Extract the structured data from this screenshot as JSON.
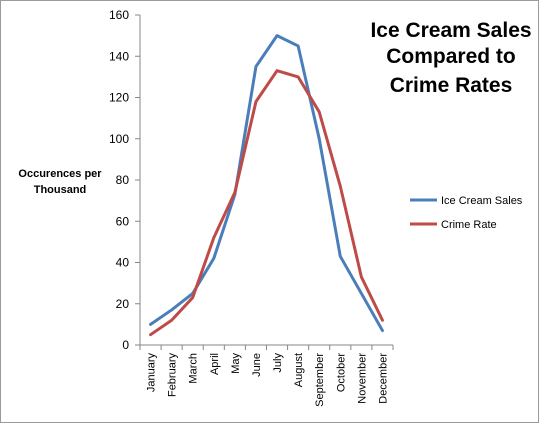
{
  "chart_data": {
    "type": "line",
    "title_lines": [
      "Ice Cream Sales",
      "Compared to",
      "Crime Rates"
    ],
    "ylabel_lines": [
      "Occurences per",
      "Thousand"
    ],
    "xlabel": "",
    "categories": [
      "January",
      "February",
      "March",
      "April",
      "May",
      "June",
      "July",
      "August",
      "September",
      "October",
      "November",
      "December"
    ],
    "ylim": [
      0,
      160
    ],
    "yticks": [
      0,
      20,
      40,
      60,
      80,
      100,
      120,
      140,
      160
    ],
    "grid": false,
    "legend_position": "right",
    "series": [
      {
        "name": "Ice Cream Sales",
        "color": "#4a7ebb",
        "values": [
          10,
          17,
          25,
          42,
          73,
          135,
          150,
          145,
          100,
          43,
          25,
          7
        ]
      },
      {
        "name": "Crime Rate",
        "color": "#be4b48",
        "values": [
          5,
          12,
          23,
          52,
          74,
          118,
          133,
          130,
          113,
          77,
          33,
          12
        ]
      }
    ]
  }
}
